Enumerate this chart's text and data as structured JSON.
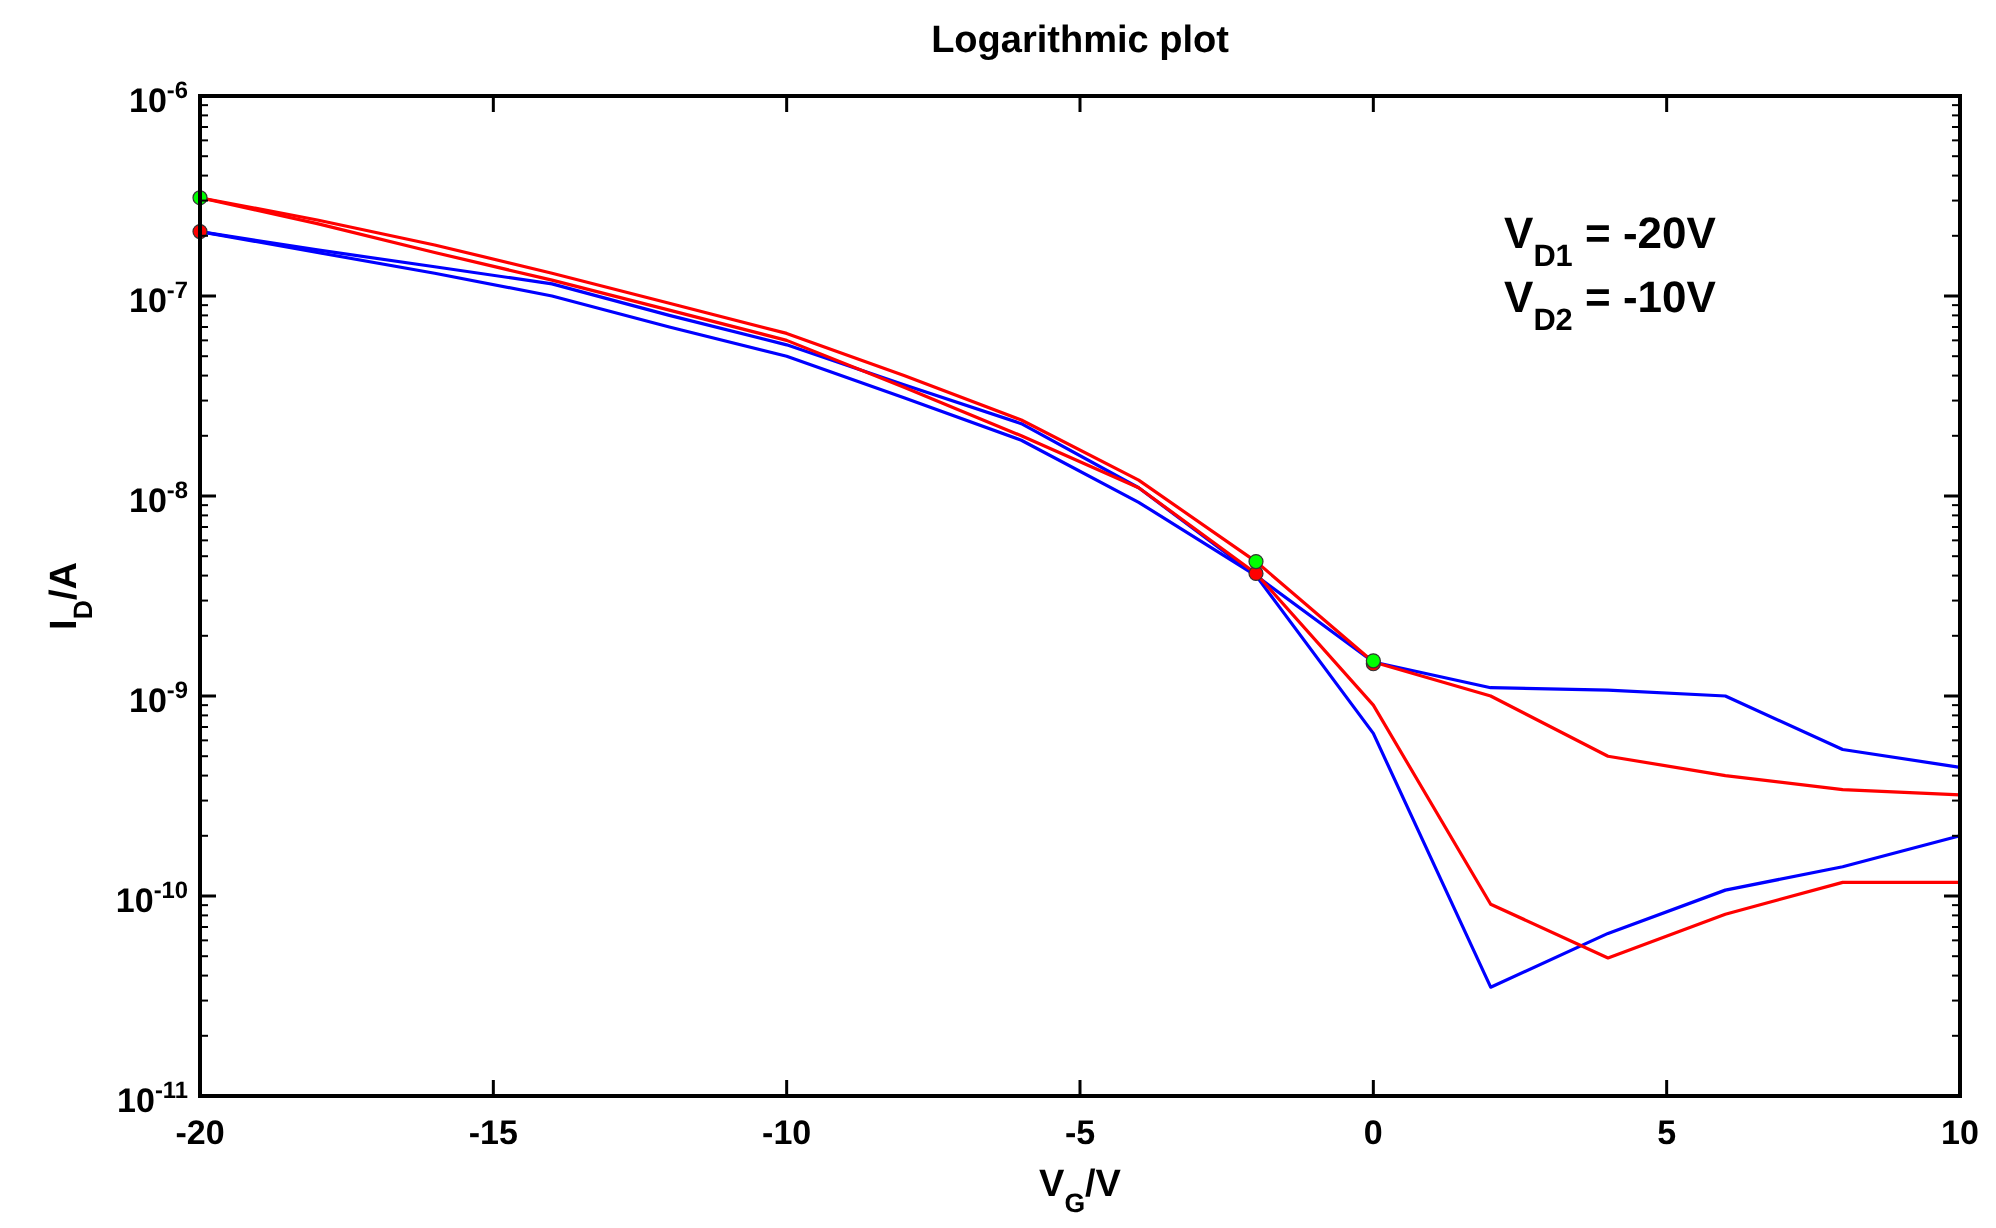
{
  "chart_data": {
    "type": "line",
    "title": "Logarithmic plot",
    "xlabel": "V$_{G}$/V",
    "ylabel": "I$_{D}$/A",
    "log": "y",
    "grid": false,
    "marker": "none",
    "line_style": "solid",
    "x": [
      -20,
      -18,
      -16,
      -14,
      -12,
      -10,
      -8,
      -6,
      -4,
      -2,
      0,
      2,
      4,
      6,
      8,
      10
    ],
    "xlim": [
      -20,
      10
    ],
    "xticks": [
      -20,
      -15,
      -10,
      -5,
      0,
      5,
      10
    ],
    "ylim": [
      1e-11,
      1e-06
    ],
    "yticks": [
      {
        "value": 1e-11,
        "label": "10$^{-11}$"
      },
      {
        "value": 1e-10,
        "label": "10$^{-10}$"
      },
      {
        "value": 1e-09,
        "label": "10$^{-9}$"
      },
      {
        "value": 1e-08,
        "label": "10$^{-8}$"
      },
      {
        "value": 1e-07,
        "label": "10$^{-7}$"
      },
      {
        "value": 1e-06,
        "label": "10$^{-6}$"
      }
    ],
    "annotations": [
      "V$_{D1}$ = -20V",
      "V$_{D2}$ = -10V"
    ],
    "series": [
      {
        "color": "#0000ff",
        "values": [
          2.1e-07,
          1.7e-07,
          1.4e-07,
          1.15e-07,
          8e-08,
          5.7e-08,
          3.6e-08,
          2.3e-08,
          1.1e-08,
          4e-09,
          1.48e-09,
          1.1e-09,
          1.07e-09,
          1e-09,
          5.4e-10,
          4.4e-10
        ]
      },
      {
        "color": "#0000ff",
        "values": [
          2.1e-07,
          1.65e-07,
          1.3e-07,
          1e-07,
          7e-08,
          5e-08,
          3.1e-08,
          1.9e-08,
          9.3e-09,
          4e-09,
          6.5e-10,
          3.5e-11,
          6.5e-11,
          1.07e-10,
          1.4e-10,
          2e-10
        ]
      },
      {
        "color": "#ff0000",
        "values": [
          3.1e-07,
          2.4e-07,
          1.8e-07,
          1.3e-07,
          9.2e-08,
          6.5e-08,
          4e-08,
          2.4e-08,
          1.2e-08,
          4.7e-09,
          1.48e-09,
          1e-09,
          5e-10,
          4e-10,
          3.4e-10,
          3.2e-10
        ]
      },
      {
        "color": "#ff0000",
        "values": [
          3.1e-07,
          2.3e-07,
          1.65e-07,
          1.2e-07,
          8.5e-08,
          6e-08,
          3.5e-08,
          2e-08,
          1.1e-08,
          4.1e-09,
          9e-10,
          9.1e-11,
          4.9e-11,
          8.1e-11,
          1.17e-10,
          1.17e-10
        ]
      },
      {
        "type": "scatter",
        "marker": "circle",
        "color": "#ff0000",
        "x": [
          -20,
          -2,
          0
        ],
        "values": [
          2.1e-07,
          4.1e-09,
          1.45e-09
        ]
      },
      {
        "type": "scatter",
        "marker": "circle",
        "color": "#00ff00",
        "x": [
          -20,
          -2,
          0
        ],
        "values": [
          3.1e-07,
          4.7e-09,
          1.5e-09
        ]
      }
    ]
  }
}
